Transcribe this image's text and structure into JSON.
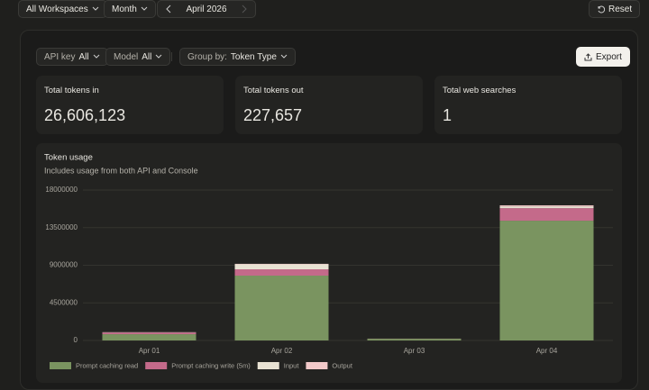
{
  "toolbar": {
    "workspace": "All Workspaces",
    "period": "Month",
    "month": "April 2026",
    "reset": "Reset"
  },
  "filters": {
    "api_key_label": "API key",
    "api_key_value": "All",
    "model_label": "Model",
    "model_value": "All",
    "group_by_label": "Group by:",
    "group_by_value": "Token Type",
    "export": "Export"
  },
  "cards": [
    {
      "label": "Total tokens in",
      "value": "26,606,123"
    },
    {
      "label": "Total tokens out",
      "value": "227,657"
    },
    {
      "label": "Total web searches",
      "value": "1"
    }
  ],
  "chart_data": {
    "type": "bar",
    "stacked": true,
    "title": "Token usage",
    "subtitle": "Includes usage from both API and Console",
    "categories": [
      "Apr 01",
      "Apr 02",
      "Apr 03",
      "Apr 04"
    ],
    "series": [
      {
        "name": "Prompt caching read",
        "color": "#7a9460",
        "values": [
          750000,
          7760000,
          200000,
          14330000
        ]
      },
      {
        "name": "Prompt caching write (5m)",
        "color": "#c46a8a",
        "values": [
          200000,
          750000,
          10000,
          1500000
        ]
      },
      {
        "name": "Input",
        "color": "#e8e2d3",
        "values": [
          20000,
          600000,
          5000,
          200000
        ]
      },
      {
        "name": "Output",
        "color": "#f2c9c9",
        "values": [
          20000,
          60000,
          5000,
          140000
        ]
      }
    ],
    "ylim": [
      0,
      18000000
    ],
    "yticks": [
      0,
      4500000,
      9000000,
      13500000,
      18000000
    ],
    "grid": true
  }
}
